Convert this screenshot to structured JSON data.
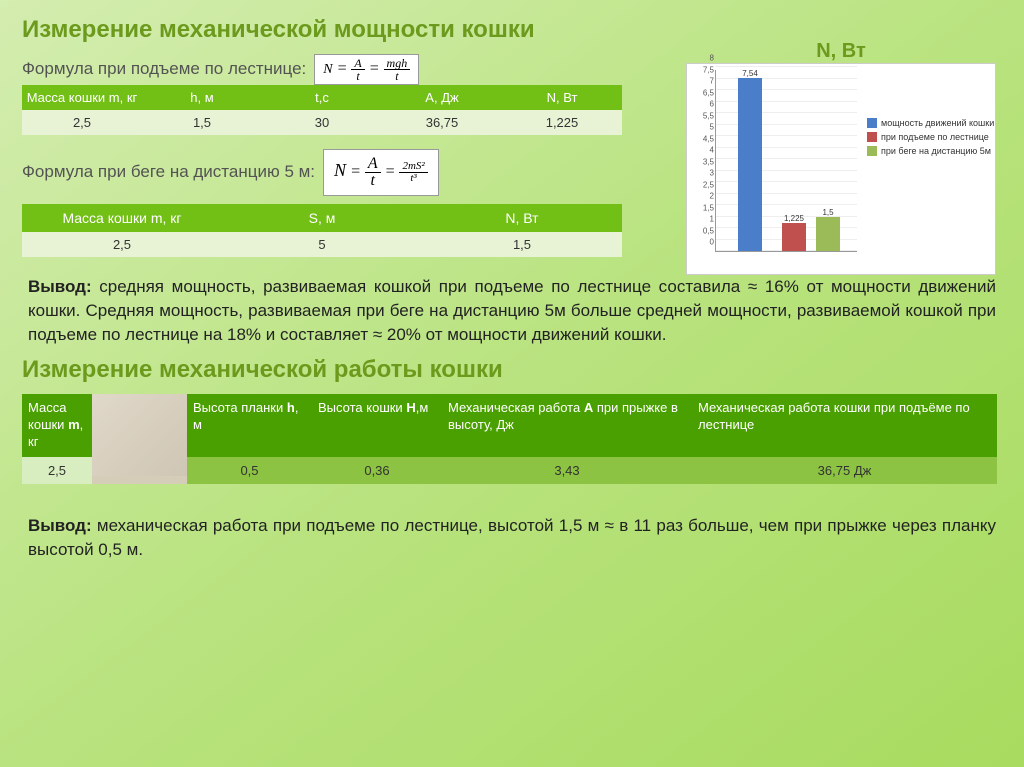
{
  "heading1": "Измерение механической мощности кошки",
  "sub1": "Формула при подъеме по лестнице:",
  "formula1": {
    "lhs": "N",
    "mid": "A",
    "midd": "t",
    "rhs": "mgh",
    "rhsd": "t"
  },
  "table1": {
    "headers": [
      "Масса кошки m, кг",
      "h, м",
      "t,c",
      "А, Дж",
      "N, Вт"
    ],
    "row": [
      "2,5",
      "1,5",
      "30",
      "36,75",
      "1,225"
    ]
  },
  "sub2": "Формула при беге на дистанцию 5 м:",
  "formula2": {
    "lhs": "N",
    "mid": "A",
    "midd": "t",
    "rhs": "2mS²",
    "rhsd": "t³"
  },
  "table2": {
    "headers": [
      "Масса кошки m, кг",
      "S, м",
      "N, Вт"
    ],
    "row": [
      "2,5",
      "5",
      "1,5"
    ]
  },
  "chart": {
    "title": "N, Вт",
    "type": "bar",
    "ylim": [
      0,
      8
    ],
    "ytick_step": 0.5,
    "background_color": "#ffffff",
    "grid_color": "#eeeeee",
    "axis_color": "#999999",
    "bars": [
      {
        "value": 7.54,
        "label": "7,54",
        "color": "#4a7ec9",
        "x": 22
      },
      {
        "value": 1.225,
        "label": "1,225",
        "color": "#c0504d",
        "x": 66
      },
      {
        "value": 1.5,
        "label": "1,5",
        "color": "#9bbb59",
        "x": 100
      }
    ],
    "legend": [
      {
        "label": "мощность движений кошки",
        "color": "#4a7ec9"
      },
      {
        "label": "при подъеме по лестнице",
        "color": "#c0504d"
      },
      {
        "label": "при беге на дистанцию 5м",
        "color": "#9bbb59"
      }
    ]
  },
  "conclusion1_label": "Вывод:",
  "conclusion1": " средняя мощность,  развиваемая кошкой при подъеме по лестнице составила ≈ 16%  от мощности движений кошки.  Средняя мощность, развиваемая при беге на дистанцию 5м больше средней мощности,   развиваемой  кошкой при подъеме по лестнице на 18% и составляет ≈ 20% от мощности движений кошки.",
  "heading2": "Измерение механической работы кошки",
  "table3": {
    "headers": [
      "Масса кошки m, кг",
      "",
      "Высота планки h, м",
      "Высота кошки H,м",
      "Механическая работа А при прыжке в высоту, Дж",
      "Механическая работа кошки при подъёме по лестнице"
    ],
    "col_widths": [
      "70px",
      "95px",
      "125px",
      "130px",
      "250px",
      "305px"
    ],
    "row": [
      "2,5",
      "",
      "0,5",
      "0,36",
      "3,43",
      "36,75 Дж"
    ]
  },
  "conclusion2_label": "Вывод:",
  "conclusion2": " механическая работа при подъеме по лестнице, высотой 1,5 м ≈ в 11 раз больше, чем при прыжке через планку высотой 0,5 м."
}
